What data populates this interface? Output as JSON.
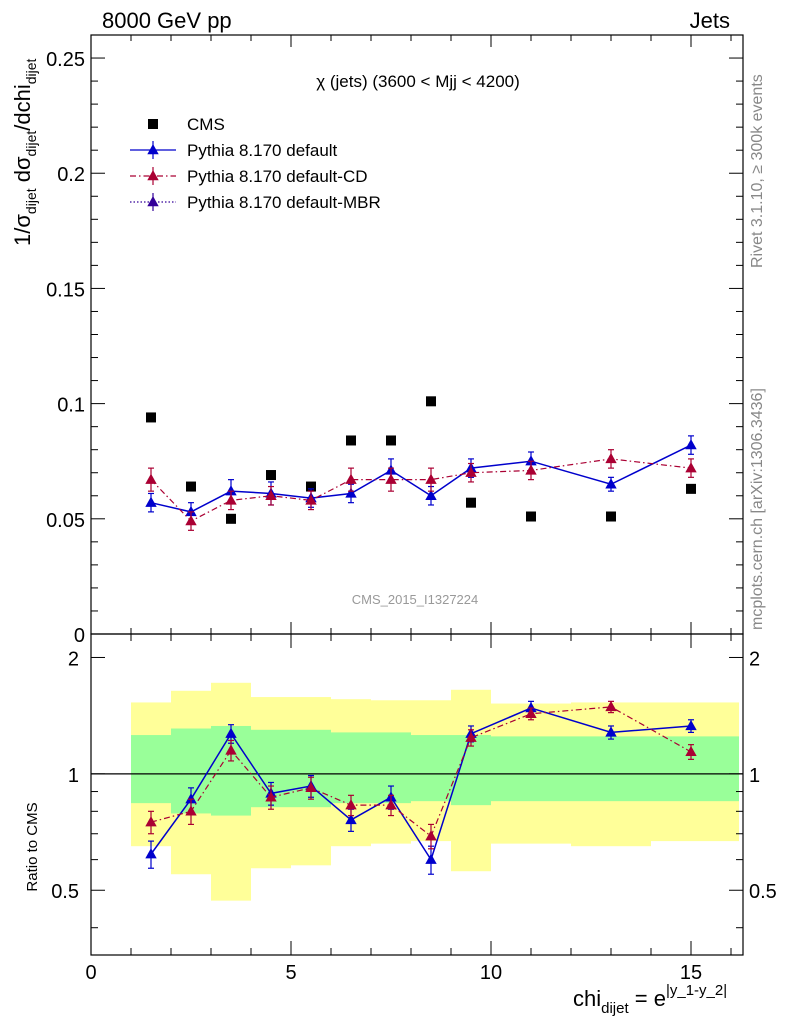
{
  "header": {
    "energy_label": "8000 GeV pp",
    "process_label": "Jets",
    "side_rivet": "Rivet 3.1.10, ≥ 300k events",
    "side_mcplots": "mcplots.cern.ch [arXiv:1306.3436]",
    "analysis_id": "CMS_2015_I1327224"
  },
  "chart_data": [
    {
      "type": "scatter",
      "title": "χ (jets) (3600 < Mjj < 4200)",
      "ylabel_text": "1/σdijet dσdijet/dchidijet",
      "ylim": [
        0,
        0.26
      ],
      "xlim": [
        0,
        16.3
      ],
      "yticks": [
        "0",
        "0.05",
        "0.1",
        "0.15",
        "0.2",
        "0.25"
      ],
      "legend_position": "top-left",
      "x": [
        1.5,
        2.5,
        3.5,
        4.5,
        5.5,
        6.5,
        7.5,
        8.5,
        9.5,
        11,
        13,
        15
      ],
      "series": [
        {
          "name": "CMS",
          "color": "#000000",
          "marker": "square",
          "values": [
            0.094,
            0.064,
            0.05,
            0.069,
            0.064,
            0.084,
            0.084,
            0.101,
            0.057,
            0.051,
            0.051,
            0.063
          ]
        },
        {
          "name": "Pythia 8.170 default",
          "color": "#0000cc",
          "marker": "triangle",
          "line": "solid",
          "values": [
            0.057,
            0.053,
            0.062,
            0.061,
            0.059,
            0.061,
            0.071,
            0.06,
            0.072,
            0.075,
            0.065,
            0.082
          ],
          "errors": [
            0.004,
            0.004,
            0.005,
            0.005,
            0.004,
            0.004,
            0.005,
            0.004,
            0.004,
            0.004,
            0.003,
            0.004
          ]
        },
        {
          "name": "Pythia 8.170 default-CD",
          "color": "#aa0033",
          "marker": "triangle",
          "line": "dashdot",
          "values": [
            0.067,
            0.049,
            0.058,
            0.06,
            0.058,
            0.067,
            0.067,
            0.067,
            0.07,
            0.071,
            0.076,
            0.072
          ],
          "errors": [
            0.005,
            0.004,
            0.004,
            0.004,
            0.004,
            0.005,
            0.005,
            0.005,
            0.004,
            0.004,
            0.004,
            0.004
          ]
        },
        {
          "name": "Pythia 8.170 default-MBR",
          "color": "#330099",
          "marker": "triangle",
          "line": "dotted",
          "values": [],
          "errors": []
        }
      ]
    },
    {
      "type": "scatter",
      "ylabel": "Ratio to CMS",
      "xlabel_text": "chidijet = e|y_1-y_2|",
      "ylim": [
        0.34,
        2.3
      ],
      "xlim": [
        0,
        16.3
      ],
      "log_y": true,
      "yticks": [
        "0.5",
        "1",
        "2"
      ],
      "xticks": [
        "0",
        "5",
        "10",
        "15"
      ],
      "x": [
        1.5,
        2.5,
        3.5,
        4.5,
        5.5,
        6.5,
        7.5,
        8.5,
        9.5,
        11,
        13,
        15
      ],
      "bands": {
        "edges": [
          1,
          2,
          3,
          4,
          5,
          6,
          7,
          8,
          9,
          10,
          12,
          14,
          16.2
        ],
        "inner_color": "#99ff99",
        "outer_color": "#ffff99",
        "inner_low": [
          0.84,
          0.79,
          0.78,
          0.82,
          0.82,
          0.84,
          0.84,
          0.85,
          0.83,
          0.85,
          0.85,
          0.85
        ],
        "inner_high": [
          1.26,
          1.31,
          1.33,
          1.3,
          1.3,
          1.28,
          1.28,
          1.26,
          1.26,
          1.25,
          1.25,
          1.25
        ],
        "outer_low": [
          0.65,
          0.55,
          0.47,
          0.57,
          0.58,
          0.65,
          0.66,
          0.67,
          0.56,
          0.66,
          0.65,
          0.67
        ],
        "outer_high": [
          1.53,
          1.64,
          1.72,
          1.58,
          1.58,
          1.56,
          1.55,
          1.55,
          1.65,
          1.52,
          1.53,
          1.53
        ]
      },
      "series": [
        {
          "name": "Pythia 8.170 default",
          "color": "#0000cc",
          "values": [
            0.62,
            0.86,
            1.27,
            0.89,
            0.93,
            0.76,
            0.87,
            0.6,
            1.27,
            1.48,
            1.28,
            1.33
          ],
          "errors": [
            0.05,
            0.06,
            0.07,
            0.06,
            0.06,
            0.05,
            0.06,
            0.05,
            0.06,
            0.06,
            0.05,
            0.05
          ]
        },
        {
          "name": "Pythia 8.170 default-CD",
          "color": "#aa0033",
          "values": [
            0.75,
            0.8,
            1.15,
            0.87,
            0.92,
            0.83,
            0.83,
            0.69,
            1.24,
            1.43,
            1.49,
            1.14
          ],
          "errors": [
            0.05,
            0.06,
            0.07,
            0.06,
            0.06,
            0.05,
            0.05,
            0.05,
            0.06,
            0.05,
            0.05,
            0.05
          ]
        }
      ]
    }
  ]
}
